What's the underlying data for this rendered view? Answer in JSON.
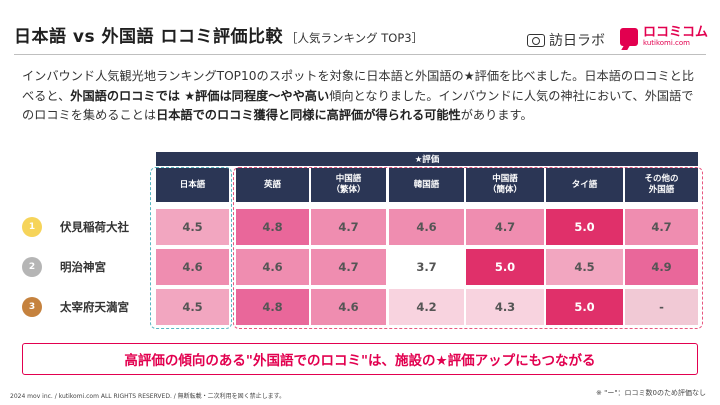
{
  "header": {
    "title": "日本語 vs 外国語 ロコミ評価比較",
    "subtitle": "［人気ランキング TOP3］",
    "logo1_text": "訪日ラボ",
    "logo2_name": "ロコミコム",
    "logo2_url": "kutikomi.com"
  },
  "intro": {
    "p1": "インバウンド人気観光地ランキングTOP10のスポットを対象に日本語と外国語の★評価を比べました。日本語のロコミと比べると、",
    "b1": "外国語のロコミでは ★評価は同程度～やや高い",
    "p2": "傾向となりました。インバウンドに人気の神社において、外国語でのロコミを集めることは",
    "b2": "日本語でのロコミ獲得と同様に高評価が得られる可能性",
    "p3": "があります。"
  },
  "table": {
    "rating_header": "★評価",
    "columns": [
      "日本語",
      "英語",
      "中国語\n（繁体）",
      "韓国語",
      "中国語\n（簡体）",
      "タイ語",
      "その他の\n外国語"
    ],
    "rows": [
      {
        "rank": "1",
        "name": "伏見稲荷大社",
        "values": [
          "4.5",
          "4.8",
          "4.7",
          "4.6",
          "4.7",
          "5.0",
          "4.7"
        ]
      },
      {
        "rank": "2",
        "name": "明治神宮",
        "values": [
          "4.6",
          "4.6",
          "4.7",
          "3.7",
          "5.0",
          "4.5",
          "4.9"
        ]
      },
      {
        "rank": "3",
        "name": "太宰府天満宮",
        "values": [
          "4.5",
          "4.8",
          "4.6",
          "4.2",
          "4.3",
          "5.0",
          "-"
        ]
      }
    ]
  },
  "colors": {
    "rank1": "#f6d45a",
    "rank2": "#b5b5b5",
    "rank3": "#c5823e",
    "accent": "#e2004f",
    "header_bg": "#2b3655"
  },
  "banner": "高評価の傾向のある\"外国語でのロコミ\"は、施設の★評価アップにもつながる",
  "footer": "2024 mov inc. / kutikomi.com ALL RIGHTS RESERVED. / 無断転載・二次利用を固く禁止します。",
  "note": "※ \"ー\"：ロコミ数0のため評価なし"
}
